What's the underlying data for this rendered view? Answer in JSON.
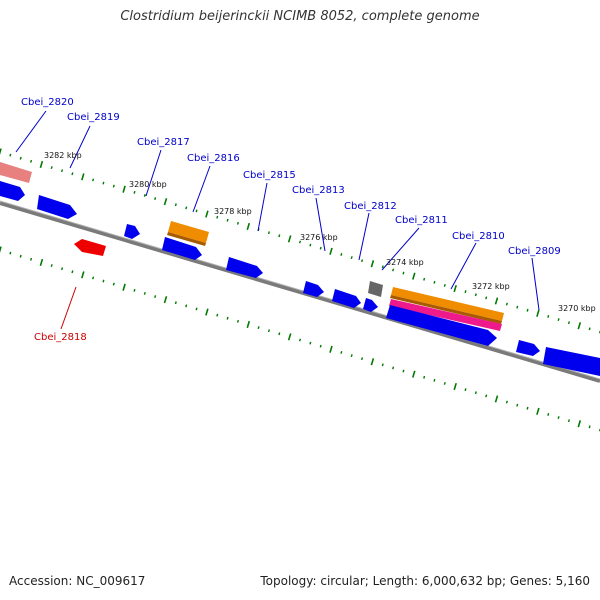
{
  "title": "Clostridium beijerinckii NCIMB 8052, complete genome",
  "footer": {
    "accession": "Accession: NC_009617",
    "summary": "Topology: circular; Length: 6,000,632 bp; Genes: 5,160"
  },
  "colors": {
    "backbone": "#7a7a7a",
    "gene_forward": "#0000ee",
    "gene_reverse": "#ee0000",
    "gene_reverse_faded": "#e88080",
    "feature_orange": "#f08c00",
    "feature_pink": "#ee1a8c",
    "feature_gray": "#666666",
    "tick": "#007a00",
    "label_blue": "#0000cc",
    "label_red": "#cc0000"
  },
  "tick_labels": [
    "3282 kbp",
    "3280 kbp",
    "3278 kbp",
    "3276 kbp",
    "3274 kbp",
    "3272 kbp",
    "3270 kbp"
  ],
  "gene_labels": [
    {
      "name": "Cbei_2820",
      "strand": "reverse"
    },
    {
      "name": "Cbei_2819",
      "strand": "forward"
    },
    {
      "name": "Cbei_2817",
      "strand": "forward"
    },
    {
      "name": "Cbei_2816",
      "strand": "forward"
    },
    {
      "name": "Cbei_2815",
      "strand": "forward"
    },
    {
      "name": "Cbei_2813",
      "strand": "forward"
    },
    {
      "name": "Cbei_2812",
      "strand": "forward"
    },
    {
      "name": "Cbei_2811",
      "strand": "forward"
    },
    {
      "name": "Cbei_2810",
      "strand": "forward"
    },
    {
      "name": "Cbei_2809",
      "strand": "forward"
    },
    {
      "name": "Cbei_2818",
      "strand": "reverse"
    }
  ]
}
